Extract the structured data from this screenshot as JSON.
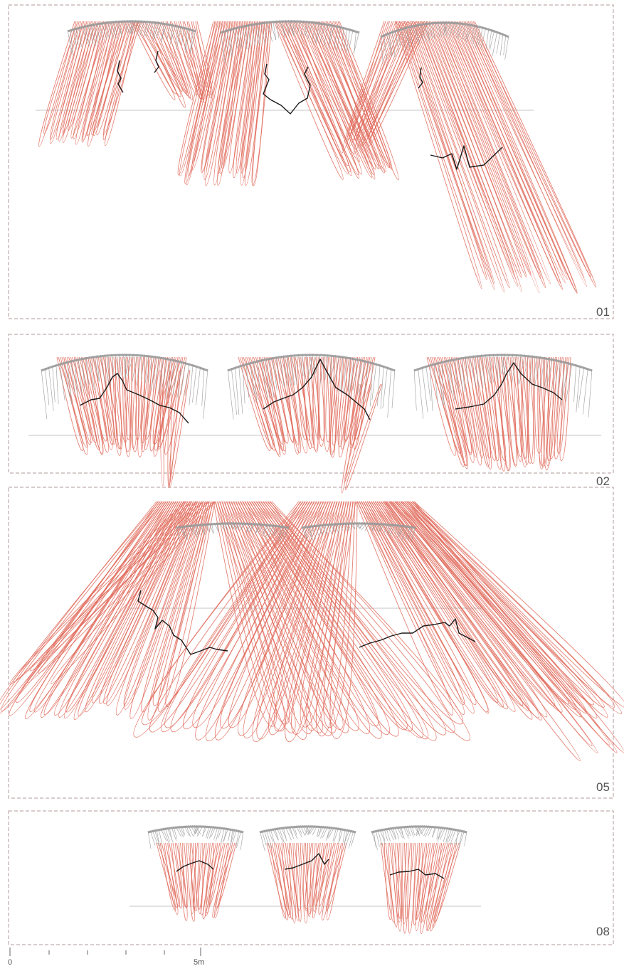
{
  "colors": {
    "frame": "#b09a98",
    "ray": "#e06a5a",
    "shell": "#999999",
    "crack": "#1a1a1a",
    "ground": "#c4c4c4",
    "label": "#555555"
  },
  "panels": [
    {
      "id": "panel-01",
      "label": "01"
    },
    {
      "id": "panel-02",
      "label": "02"
    },
    {
      "id": "panel-05",
      "label": "05"
    },
    {
      "id": "panel-08",
      "label": "08"
    }
  ],
  "scale_bar": {
    "start_label": "0",
    "end_label": "5m",
    "end_value_m": 5,
    "divisions": 5
  }
}
